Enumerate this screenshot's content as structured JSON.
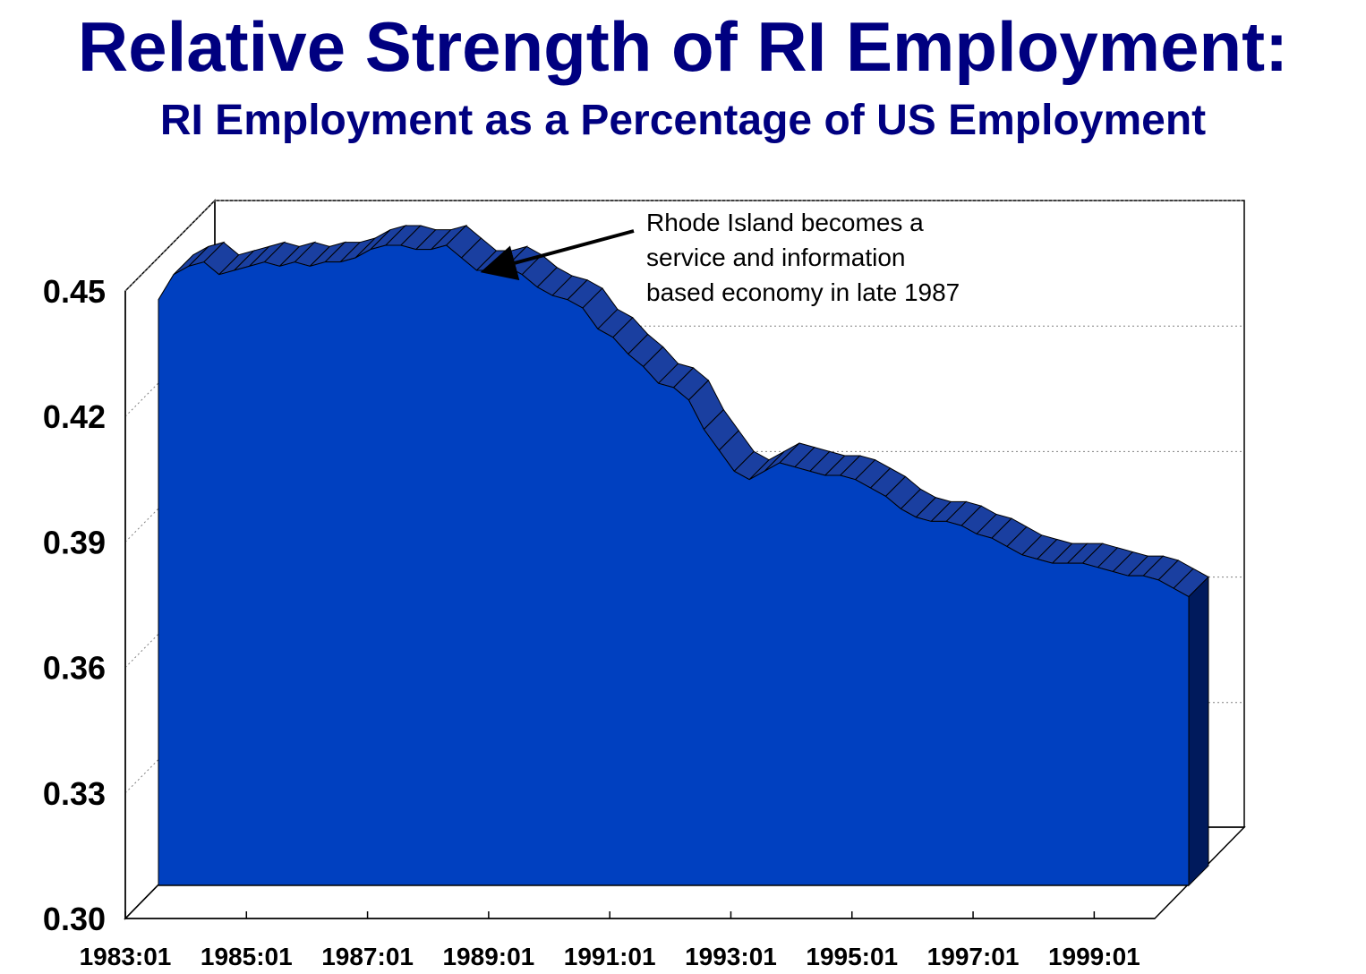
{
  "title": "Relative Strength of RI Employment:",
  "subtitle": "RI Employment as a Percentage of US Employment",
  "colors": {
    "title": "#000080",
    "area_front": "#0040C0",
    "area_top": "#1A3FA0",
    "area_side": "#001A5C",
    "gridline": "#808080"
  },
  "chart_data": {
    "type": "area",
    "three_d": true,
    "title": "Relative Strength of RI Employment:",
    "subtitle": "RI Employment as a Percentage of US Employment",
    "xlabel": "",
    "ylabel": "",
    "ylim": [
      0.3,
      0.45
    ],
    "y_ticks": [
      "0.30",
      "0.33",
      "0.36",
      "0.39",
      "0.42",
      "0.45"
    ],
    "y_tick_values": [
      0.3,
      0.33,
      0.36,
      0.39,
      0.42,
      0.45
    ],
    "x_ticks": [
      "1983:01",
      "1985:01",
      "1987:01",
      "1989:01",
      "1991:01",
      "1993:01",
      "1995:01",
      "1997:01",
      "1999:01"
    ],
    "x_tick_values": [
      1983.0,
      1985.0,
      1987.0,
      1989.0,
      1991.0,
      1993.0,
      1995.0,
      1997.0,
      1999.0
    ],
    "grid": true,
    "legend": "none",
    "series": [
      {
        "x": [
          1983.0,
          1983.25,
          1983.5,
          1983.75,
          1984.0,
          1984.25,
          1984.5,
          1984.75,
          1985.0,
          1985.25,
          1985.5,
          1985.75,
          1986.0,
          1986.25,
          1986.5,
          1986.75,
          1987.0,
          1987.25,
          1987.5,
          1987.75,
          1988.0,
          1988.25,
          1988.5,
          1988.75,
          1989.0,
          1989.25,
          1989.5,
          1989.75,
          1990.0,
          1990.25,
          1990.5,
          1990.75,
          1991.0,
          1991.25,
          1991.5,
          1991.75,
          1992.0,
          1992.25,
          1992.5,
          1992.75,
          1993.0,
          1993.25,
          1993.5,
          1993.75,
          1994.0,
          1994.25,
          1994.5,
          1994.75,
          1995.0,
          1995.25,
          1995.5,
          1995.75,
          1996.0,
          1996.25,
          1996.5,
          1996.75,
          1997.0,
          1997.25,
          1997.5,
          1997.75,
          1998.0,
          1998.25,
          1998.5,
          1998.75,
          1999.0,
          1999.25,
          1999.5,
          1999.75,
          2000.0
        ],
        "values": [
          0.44,
          0.446,
          0.448,
          0.449,
          0.446,
          0.447,
          0.448,
          0.449,
          0.448,
          0.449,
          0.448,
          0.449,
          0.449,
          0.45,
          0.452,
          0.453,
          0.453,
          0.452,
          0.452,
          0.453,
          0.45,
          0.447,
          0.447,
          0.448,
          0.446,
          0.443,
          0.441,
          0.44,
          0.438,
          0.433,
          0.431,
          0.427,
          0.424,
          0.42,
          0.419,
          0.416,
          0.409,
          0.404,
          0.399,
          0.397,
          0.399,
          0.401,
          0.4,
          0.399,
          0.398,
          0.398,
          0.397,
          0.395,
          0.393,
          0.39,
          0.388,
          0.387,
          0.387,
          0.386,
          0.384,
          0.383,
          0.381,
          0.379,
          0.378,
          0.377,
          0.377,
          0.377,
          0.376,
          0.375,
          0.374,
          0.374,
          0.373,
          0.371,
          0.369
        ]
      }
    ],
    "annotations": [
      {
        "lines": [
          "Rhode Island becomes a",
          "service and information",
          "based economy in late 1987"
        ],
        "points_to_x": 1988.0,
        "points_to_y": 0.452
      }
    ]
  }
}
